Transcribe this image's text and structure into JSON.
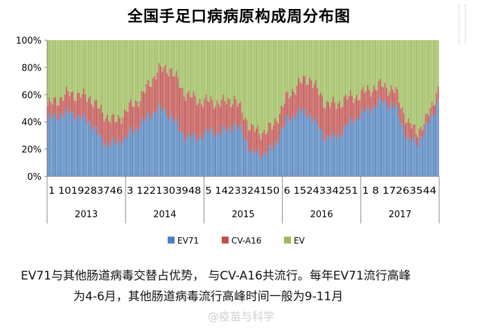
{
  "chart_data": {
    "type": "bar",
    "stacked": true,
    "percent": true,
    "title": "全国手足口病病原构成周分布图",
    "ylim": [
      0,
      100
    ],
    "y_ticks": [
      "0%",
      "20%",
      "40%",
      "60%",
      "80%",
      "100%"
    ],
    "years": [
      "2013",
      "2014",
      "2015",
      "2016",
      "2017"
    ],
    "week_tick_labels": [
      "1 1019283746",
      "3 1221303948",
      "5 1423324150",
      "6 1524334251",
      "1 8 17263544"
    ],
    "legend_position": "bottom",
    "series": [
      {
        "name": "EV71",
        "color": "#4f81bd",
        "keypoints": [
          [
            0,
            42
          ],
          [
            10,
            47
          ],
          [
            20,
            40
          ],
          [
            26,
            25
          ],
          [
            32,
            24
          ],
          [
            38,
            30
          ],
          [
            44,
            39
          ],
          [
            52,
            50
          ],
          [
            58,
            45
          ],
          [
            64,
            30
          ],
          [
            70,
            28
          ],
          [
            76,
            33
          ],
          [
            82,
            32
          ],
          [
            88,
            38
          ],
          [
            92,
            32
          ],
          [
            96,
            17
          ],
          [
            100,
            16
          ],
          [
            106,
            20
          ],
          [
            112,
            40
          ],
          [
            118,
            48
          ],
          [
            124,
            45
          ],
          [
            130,
            30
          ],
          [
            136,
            28
          ],
          [
            140,
            36
          ],
          [
            146,
            44
          ],
          [
            152,
            50
          ],
          [
            158,
            55
          ],
          [
            164,
            50
          ],
          [
            170,
            26
          ],
          [
            174,
            25
          ],
          [
            178,
            34
          ],
          [
            184,
            55
          ]
        ]
      },
      {
        "name": "CV-A16",
        "color": "#c0504d",
        "keypoints": [
          [
            0,
            52
          ],
          [
            10,
            61
          ],
          [
            20,
            58
          ],
          [
            26,
            46
          ],
          [
            32,
            40
          ],
          [
            38,
            50
          ],
          [
            44,
            58
          ],
          [
            52,
            78
          ],
          [
            58,
            79
          ],
          [
            64,
            62
          ],
          [
            70,
            56
          ],
          [
            76,
            55
          ],
          [
            82,
            54
          ],
          [
            88,
            57
          ],
          [
            92,
            46
          ],
          [
            96,
            35
          ],
          [
            100,
            32
          ],
          [
            106,
            36
          ],
          [
            112,
            56
          ],
          [
            118,
            68
          ],
          [
            124,
            72
          ],
          [
            130,
            55
          ],
          [
            136,
            52
          ],
          [
            140,
            57
          ],
          [
            146,
            59
          ],
          [
            152,
            64
          ],
          [
            158,
            67
          ],
          [
            164,
            62
          ],
          [
            170,
            38
          ],
          [
            174,
            33
          ],
          [
            178,
            40
          ],
          [
            184,
            64
          ]
        ]
      },
      {
        "name": "EV",
        "color": "#9bbb59",
        "keypoints": [
          [
            0,
            100
          ],
          [
            184,
            100
          ]
        ]
      }
    ]
  },
  "caption": {
    "line1": "EV71与其他肠道病毒交替占优势， 与CV-A16共流行。每年EV71流行高峰",
    "line2": "为4-6月，其他肠道病毒流行高峰时间一般为9-11月"
  },
  "watermark": "@疫苗与科学"
}
